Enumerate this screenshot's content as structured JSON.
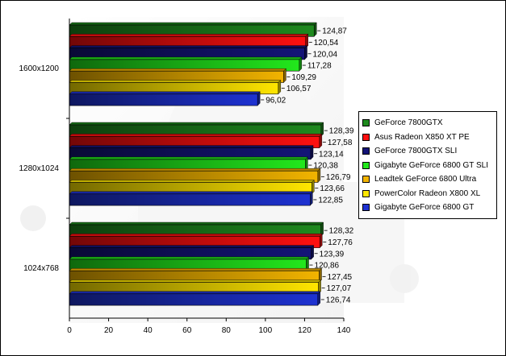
{
  "chart_data": {
    "type": "bar",
    "orientation": "horizontal",
    "categories": [
      "1600x1200",
      "1280x1024",
      "1024x768"
    ],
    "series": [
      {
        "name": "GeForce 7800GTX",
        "color": "#1e8a1e",
        "values": [
          124.87,
          128.39,
          128.32
        ],
        "labels": [
          "124,87",
          "128,39",
          "128,32"
        ]
      },
      {
        "name": "Asus Radeon X850 XT PE",
        "color": "#ff1010",
        "values": [
          120.54,
          127.58,
          127.76
        ],
        "labels": [
          "120,54",
          "127,58",
          "127,76"
        ]
      },
      {
        "name": "GeForce 7800GTX SLI",
        "color": "#141478",
        "values": [
          120.04,
          123.14,
          123.39
        ],
        "labels": [
          "120,04",
          "123,14",
          "123,39"
        ]
      },
      {
        "name": "Gigabyte GeForce 6800 GT SLI",
        "color": "#22e81c",
        "values": [
          117.28,
          120.38,
          120.86
        ],
        "labels": [
          "117,28",
          "120,38",
          "120,86"
        ]
      },
      {
        "name": "Leadtek GeForce 6800 Ultra",
        "color": "#f2b400",
        "values": [
          109.29,
          126.79,
          127.45
        ],
        "labels": [
          "109,29",
          "126,79",
          "127,45"
        ]
      },
      {
        "name": "PowerColor Radeon X800 XL",
        "color": "#ffe600",
        "values": [
          106.57,
          123.66,
          127.07
        ],
        "labels": [
          "106,57",
          "123,66",
          "127,07"
        ]
      },
      {
        "name": "Gigabyte GeForce 6800 GT",
        "color": "#1e32d2",
        "values": [
          96.02,
          122.85,
          126.74
        ],
        "labels": [
          "96,02",
          "122,85",
          "126,74"
        ]
      }
    ],
    "xlim": [
      0,
      140
    ],
    "xticks": [
      "0",
      "20",
      "40",
      "60",
      "80",
      "100",
      "120",
      "140"
    ],
    "title": "",
    "xlabel": "",
    "ylabel": "",
    "grid": false,
    "legend_position": "right"
  }
}
